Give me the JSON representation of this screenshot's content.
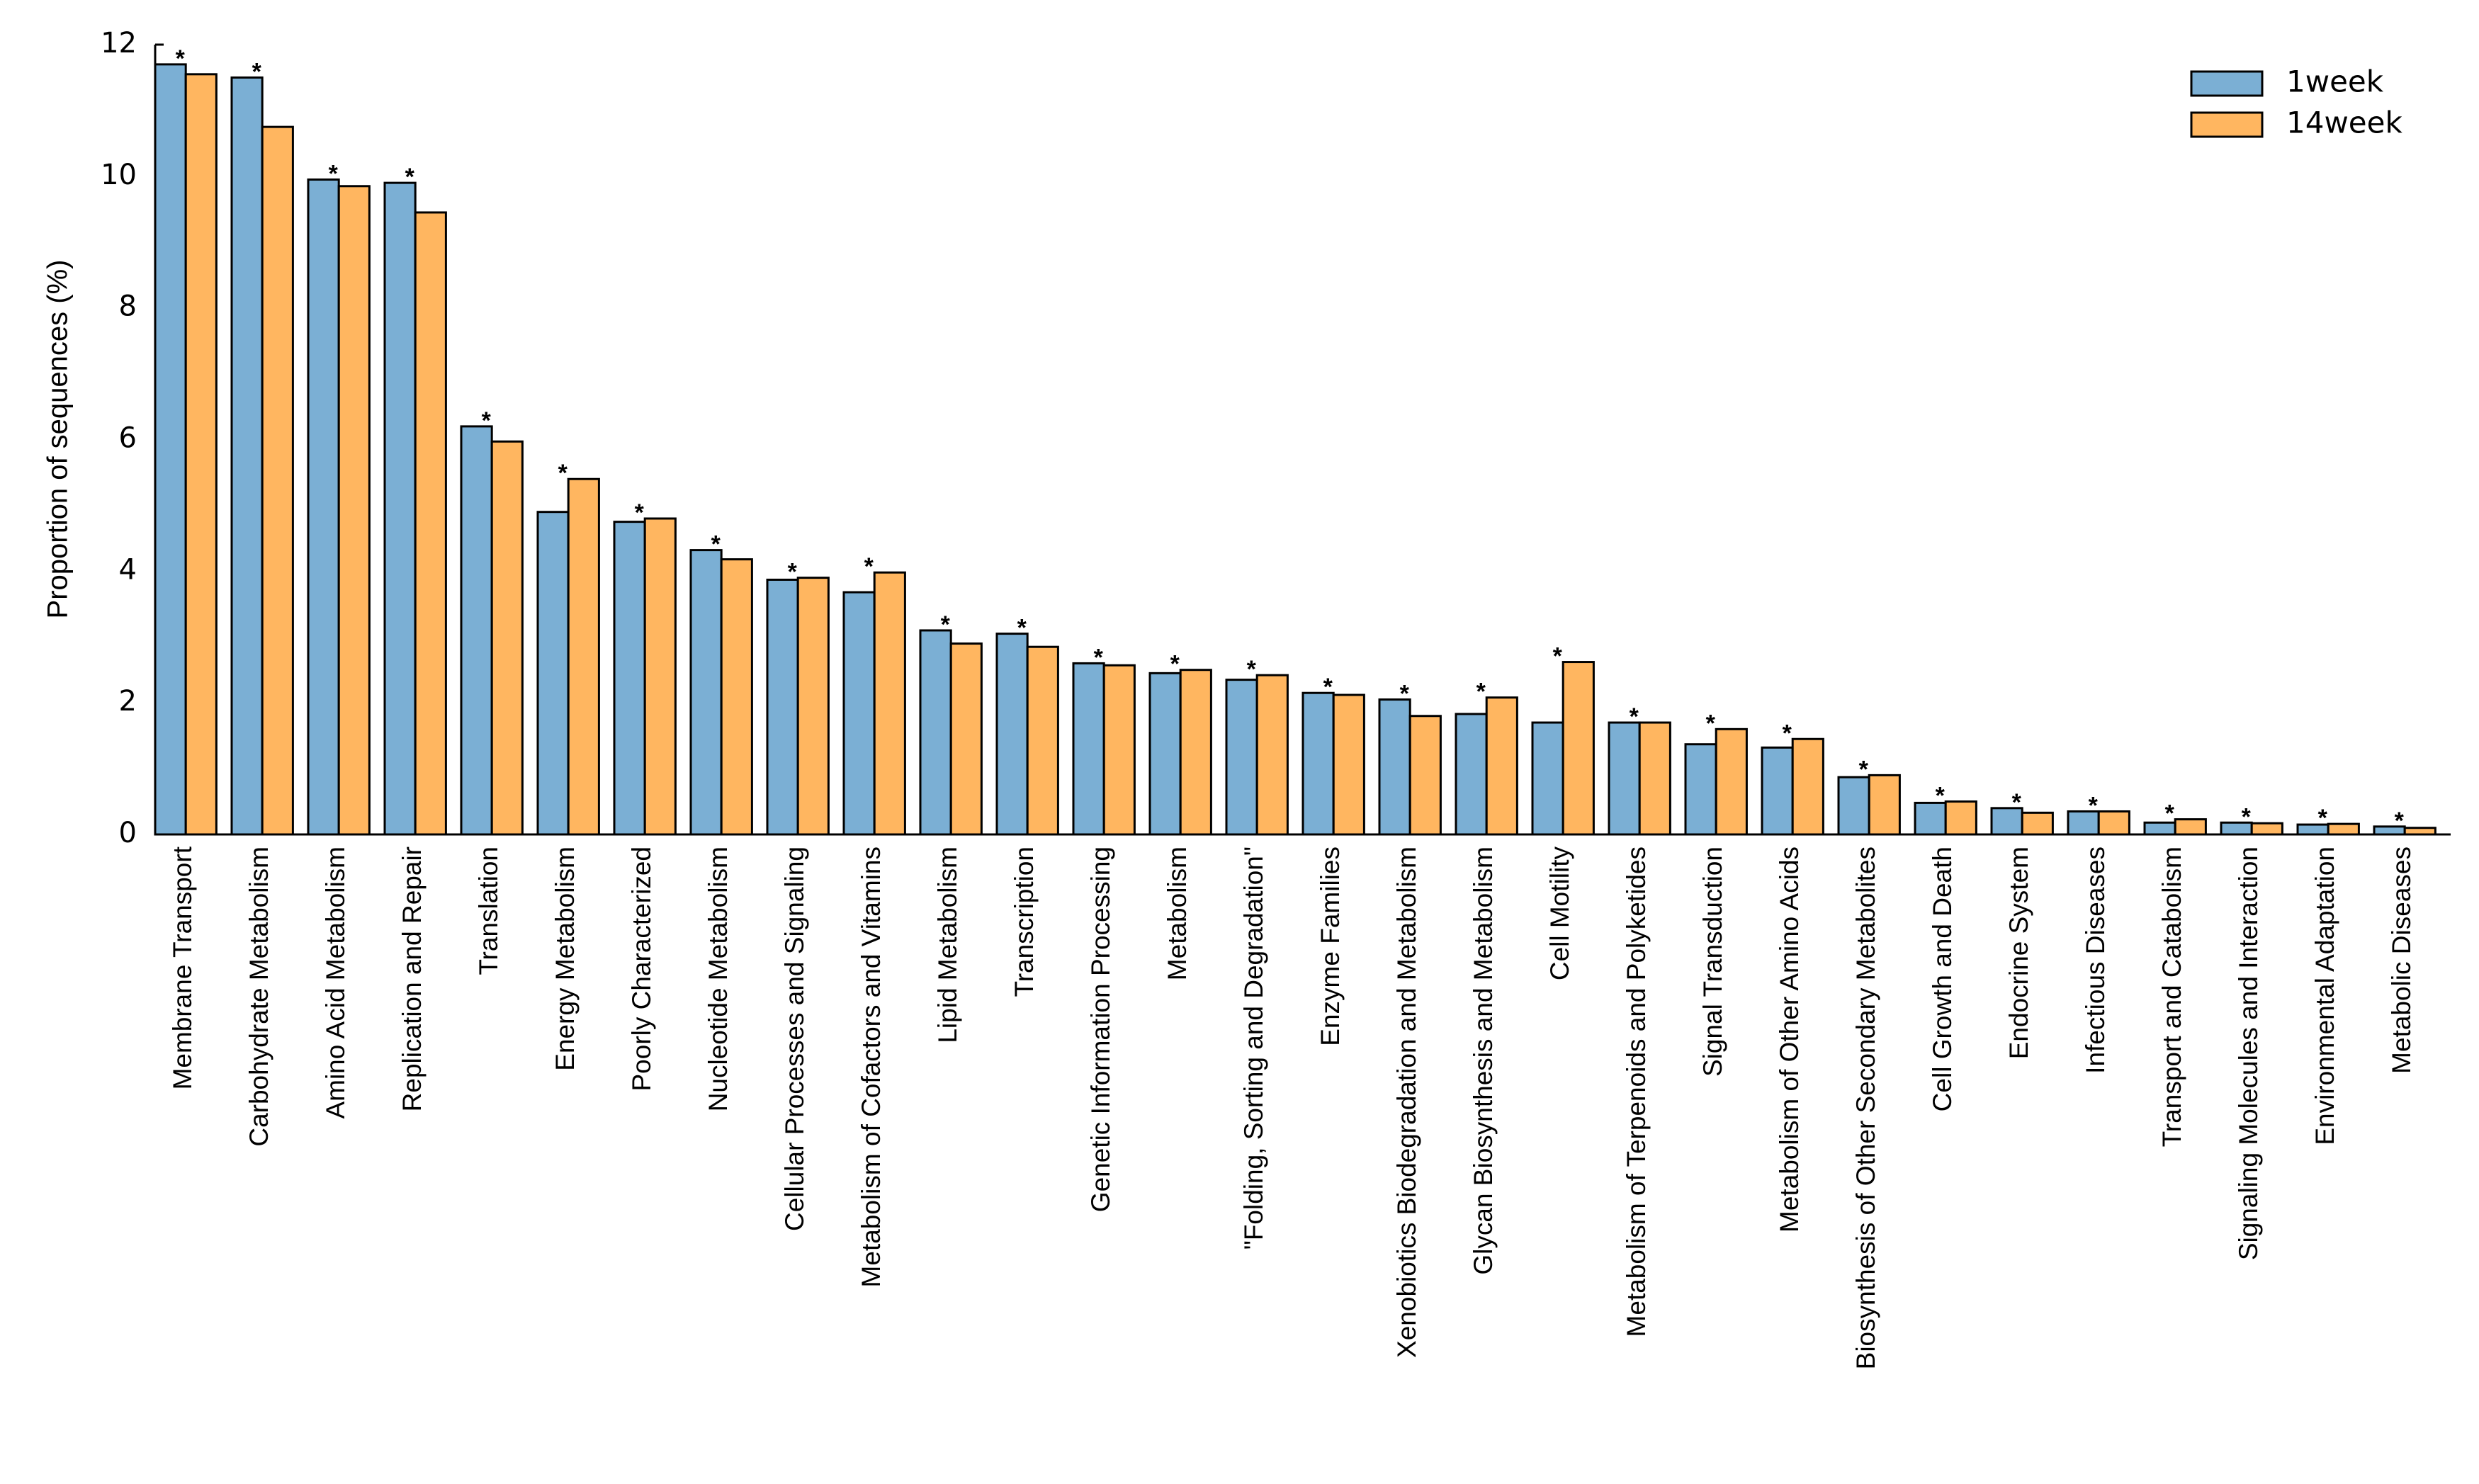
{
  "chart_data": {
    "type": "bar",
    "y_label": "Proportion of sequences (%)",
    "categories": [
      "Membrane Transport",
      "Carbohydrate Metabolism",
      "Amino Acid Metabolism",
      "Replication and Repair",
      "Translation",
      "Energy Metabolism",
      "Poorly Characterized",
      "Nucleotide Metabolism",
      "Cellular Processes and Signaling",
      "Metabolism of Cofactors and Vitamins",
      "Lipid Metabolism",
      "Transcription",
      "Genetic Information Processing",
      "Metabolism",
      "\"Folding, Sorting and Degradation\"",
      "Enzyme Families",
      "Xenobiotics Biodegradation and Metabolism",
      "Glycan Biosynthesis and Metabolism",
      "Cell Motility",
      "Metabolism of Terpenoids and Polyketides",
      "Signal Transduction",
      "Metabolism of Other Amino Acids",
      "Biosynthesis of Other Secondary Metabolites",
      "Cell Growth and Death",
      "Endocrine System",
      "Infectious Diseases",
      "Transport and Catabolism",
      "Signaling Molecules and Interaction",
      "Environmental Adaptation",
      "Metabolic Diseases"
    ],
    "series": [
      {
        "name": "1week",
        "color": "#7bafd4",
        "values": [
          11.7,
          11.5,
          9.95,
          9.9,
          6.2,
          4.9,
          4.75,
          4.32,
          3.87,
          3.68,
          3.1,
          3.05,
          2.6,
          2.45,
          2.35,
          2.15,
          2.05,
          1.83,
          1.7,
          1.7,
          1.37,
          1.32,
          0.87,
          0.48,
          0.4,
          0.35,
          0.18,
          0.18,
          0.15,
          0.12
        ]
      },
      {
        "name": "14week",
        "color": "#ffb660",
        "values": [
          11.55,
          10.75,
          9.85,
          9.45,
          5.97,
          5.4,
          4.8,
          4.18,
          3.9,
          3.98,
          2.9,
          2.85,
          2.57,
          2.5,
          2.42,
          2.12,
          1.8,
          2.08,
          2.62,
          1.7,
          1.6,
          1.45,
          0.9,
          0.5,
          0.33,
          0.35,
          0.23,
          0.17,
          0.16,
          0.1
        ]
      }
    ],
    "significance": [
      "*",
      "*",
      "*",
      "*",
      "*",
      "*",
      "*",
      "*",
      "*",
      "*",
      "*",
      "*",
      "*",
      "*",
      "*",
      "*",
      "*",
      "*",
      "*",
      "*",
      "*",
      "*",
      "*",
      "*",
      "*",
      "*",
      "*",
      "*",
      "*",
      "*"
    ],
    "ylim": [
      0,
      12
    ],
    "yticks": [
      0,
      2,
      4,
      6,
      8,
      10,
      12
    ],
    "grid": false,
    "legend": "upper right"
  }
}
